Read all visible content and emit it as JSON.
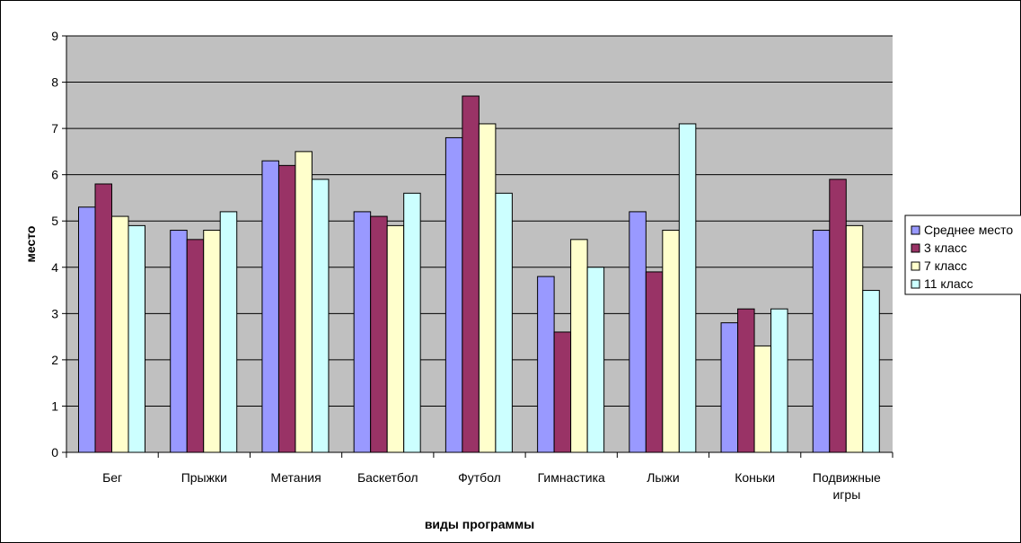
{
  "chart_data": {
    "type": "bar",
    "categories": [
      "Бег",
      "Прыжки",
      "Метания",
      "Баскетбол",
      "Футбол",
      "Гимнастика",
      "Лыжи",
      "Коньки",
      [
        "Подвижные",
        "игры"
      ]
    ],
    "series": [
      {
        "name": "Среднее место",
        "color": "#9999ff",
        "values": [
          5.3,
          4.8,
          6.3,
          5.2,
          6.8,
          3.8,
          5.2,
          2.8,
          4.8
        ]
      },
      {
        "name": "3 класс",
        "color": "#993366",
        "values": [
          5.8,
          4.6,
          6.2,
          5.1,
          7.7,
          2.6,
          3.9,
          3.1,
          5.9
        ]
      },
      {
        "name": "7 класс",
        "color": "#ffffcc",
        "values": [
          5.1,
          4.8,
          6.5,
          4.9,
          7.1,
          4.6,
          4.8,
          2.3,
          4.9
        ]
      },
      {
        "name": "11 класс",
        "color": "#ccffff",
        "values": [
          4.9,
          5.2,
          5.9,
          5.6,
          5.6,
          4.0,
          7.1,
          3.1,
          3.5
        ]
      }
    ],
    "xlabel": "виды программы",
    "ylabel": "место",
    "ylim": [
      0,
      9
    ],
    "yticks": [
      0,
      1,
      2,
      3,
      4,
      5,
      6,
      7,
      8,
      9
    ],
    "grid": true,
    "plot_background": "#c0c0c0",
    "legend_position": "right"
  }
}
